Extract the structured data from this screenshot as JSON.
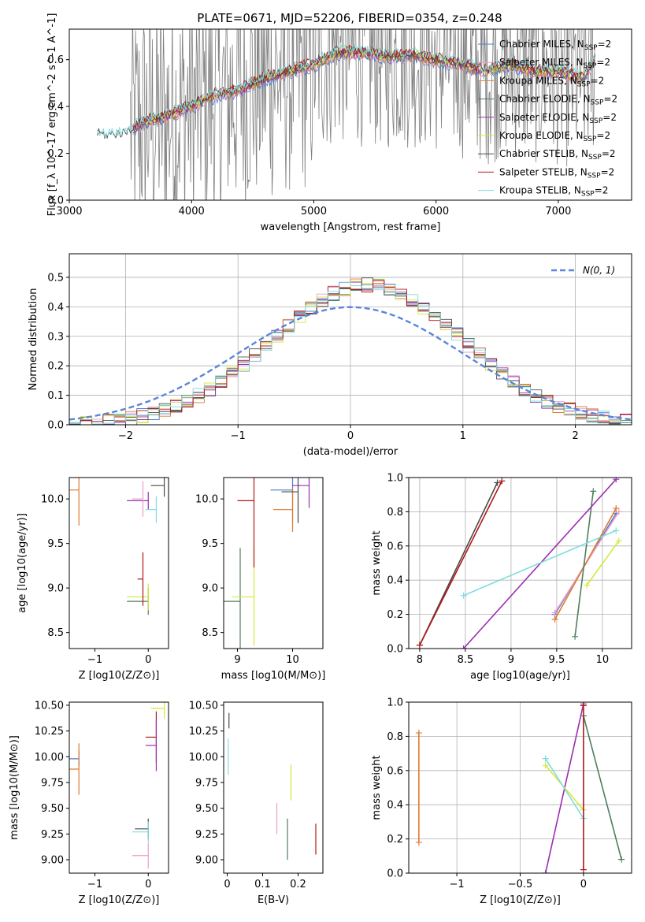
{
  "series_styles": [
    {
      "name": "Chabrier MILES, N$_{SSP}$=2",
      "color": "#4a7fd4"
    },
    {
      "name": "Salpeter MILES, N$_{SSP}$=2",
      "color": "#e8a0c8"
    },
    {
      "name": "Kroupa MILES, N$_{SSP}$=2",
      "color": "#e07a30"
    },
    {
      "name": "Chabrier ELODIE, N$_{SSP}$=2",
      "color": "#4f7f5f"
    },
    {
      "name": "Salpeter ELODIE, N$_{SSP}$=2",
      "color": "#9b2fb0"
    },
    {
      "name": "Kroupa ELODIE, N$_{SSP}$=2",
      "color": "#d4e83a"
    },
    {
      "name": "Chabrier STELIB, N$_{SSP}$=2",
      "color": "#4a4a4a"
    },
    {
      "name": "Salpeter STELIB, N$_{SSP}$=2",
      "color": "#b01818"
    },
    {
      "name": "Kroupa STELIB, N$_{SSP}$=2",
      "color": "#80dce0"
    }
  ],
  "chart_data": [
    {
      "type": "line",
      "title": "PLATE=0671, MJD=52206, FIBERID=0354, z=0.248",
      "xlabel": "wavelength [Angstrom, rest frame]",
      "ylabel": "Flux [f_λ 10^-17 erg cm^-2 s^-1 A^-1]",
      "xlim": [
        3000,
        7600
      ],
      "ylim": [
        0,
        0.73
      ],
      "xticks": [
        3000,
        4000,
        5000,
        6000,
        7000
      ],
      "yticks": [
        0.0,
        0.2,
        0.4,
        0.6
      ],
      "legend_position": "top-right",
      "legend": [
        "Chabrier MILES, N_SSP=2",
        "Salpeter MILES, N_SSP=2",
        "Kroupa MILES, N_SSP=2",
        "Chabrier ELODIE, N_SSP=2",
        "Salpeter ELODIE, N_SSP=2",
        "Kroupa ELODIE, N_SSP=2",
        "Chabrier STELIB, N_SSP=2",
        "Salpeter STELIB, N_SSP=2",
        "Kroupa STELIB, N_SSP=2"
      ],
      "data_curve_color": "#808080",
      "model_points": {
        "x": [
          3230,
          3300,
          3450,
          3600,
          3800,
          4000,
          4200,
          4400,
          4600,
          4800,
          5000,
          5200,
          5400,
          5600,
          5800,
          6000,
          6200,
          6400,
          6600,
          6800,
          7000,
          7200,
          7300
        ],
        "y": [
          0.28,
          0.27,
          0.28,
          0.33,
          0.36,
          0.4,
          0.45,
          0.47,
          0.52,
          0.55,
          0.58,
          0.63,
          0.63,
          0.61,
          0.62,
          0.6,
          0.58,
          0.55,
          0.58,
          0.55,
          0.55,
          0.52,
          0.6
        ]
      }
    },
    {
      "type": "step",
      "xlabel": "(data-model)/error",
      "ylabel": "Normed distribution",
      "xlim": [
        -2.5,
        2.5
      ],
      "ylim": [
        0,
        0.58
      ],
      "xticks": [
        -2,
        -1,
        0,
        1,
        2
      ],
      "yticks": [
        0.0,
        0.1,
        0.2,
        0.3,
        0.4,
        0.5
      ],
      "legend_position": "top-right",
      "legend": [
        "N(0,1)"
      ],
      "grid": true
    },
    {
      "type": "scatter",
      "xlabel": "Z [log10(Z/Z⊙)]",
      "ylabel": "age  [log10(age/yr)]",
      "xlim": [
        -1.48,
        0.38
      ],
      "ylim": [
        8.32,
        10.24
      ],
      "xticks": [
        -1,
        0
      ],
      "yticks": [
        8.5,
        9.0,
        9.5,
        10.0
      ],
      "points": [
        {
          "x": -1.3,
          "y": 10.1,
          "xerr": 1.6,
          "yerr": 0.8
        },
        {
          "x": 0.0,
          "y": 9.98,
          "xerr": 0.4,
          "yerr": 0.2
        },
        {
          "x": 0.3,
          "y": 10.15,
          "xerr": 0.25,
          "yerr": 0.25
        },
        {
          "x": 0.15,
          "y": 9.88,
          "xerr": 0.2,
          "yerr": 0.3
        },
        {
          "x": -0.1,
          "y": 10.0,
          "xerr": 0.2,
          "yerr": 0.4
        },
        {
          "x": 0.0,
          "y": 8.85,
          "xerr": 0.4,
          "yerr": 0.3
        },
        {
          "x": 0.0,
          "y": 8.9,
          "xerr": 0.4,
          "yerr": 0.3
        },
        {
          "x": -0.1,
          "y": 9.1,
          "xerr": 0.1,
          "yerr": 0.6
        }
      ]
    },
    {
      "type": "scatter",
      "xlabel": "mass [log10(M/M⊙)]",
      "ylabel": "",
      "xlim": [
        8.75,
        10.55
      ],
      "ylim": [
        8.32,
        10.24
      ],
      "xticks": [
        9,
        10
      ],
      "yticks": [
        8.5,
        9.0,
        9.5,
        10.0
      ],
      "points": [
        {
          "x": 9.05,
          "y": 8.85,
          "xerr": 0.4,
          "yerr": 1.2
        },
        {
          "x": 9.3,
          "y": 8.9,
          "xerr": 0.4,
          "yerr": 1.1
        },
        {
          "x": 9.3,
          "y": 9.98,
          "xerr": 0.3,
          "yerr": 1.5
        },
        {
          "x": 10.0,
          "y": 10.1,
          "xerr": 0.4,
          "yerr": 0.7
        },
        {
          "x": 10.0,
          "y": 9.88,
          "xerr": 0.35,
          "yerr": 0.5
        },
        {
          "x": 10.3,
          "y": 10.15,
          "xerr": 0.3,
          "yerr": 0.5
        },
        {
          "x": 10.1,
          "y": 10.08,
          "xerr": 0.3,
          "yerr": 0.7
        }
      ]
    },
    {
      "type": "line",
      "xlabel": "age  [log10(age/yr)]",
      "ylabel": "mass weight",
      "xlim": [
        7.88,
        10.32
      ],
      "ylim": [
        0,
        1.0
      ],
      "xticks": [
        8.0,
        8.5,
        9.0,
        9.5,
        10.0
      ],
      "yticks": [
        0.0,
        0.2,
        0.4,
        0.6,
        0.8,
        1.0
      ],
      "grid": true,
      "series": [
        {
          "name": "Chabrier MILES, N_SSP=2",
          "x": [
            9.48,
            10.15
          ],
          "y": [
            0.2,
            0.79
          ]
        },
        {
          "name": "Salpeter MILES, N_SSP=2",
          "x": [
            9.48,
            10.18
          ],
          "y": [
            0.21,
            0.8
          ]
        },
        {
          "name": "Kroupa MILES, N_SSP=2",
          "x": [
            9.48,
            10.15
          ],
          "y": [
            0.17,
            0.82
          ]
        },
        {
          "name": "Chabrier ELODIE, N_SSP=2",
          "x": [
            9.7,
            9.9
          ],
          "y": [
            0.07,
            0.92
          ]
        },
        {
          "name": "Salpeter ELODIE, N_SSP=2",
          "x": [
            8.48,
            10.15
          ],
          "y": [
            0.0,
            0.99
          ]
        },
        {
          "name": "Kroupa ELODIE, N_SSP=2",
          "x": [
            9.83,
            10.18
          ],
          "y": [
            0.37,
            0.63
          ]
        },
        {
          "name": "Chabrier STELIB, N_SSP=2",
          "x": [
            8.0,
            8.85
          ],
          "y": [
            0.02,
            0.97
          ]
        },
        {
          "name": "Salpeter STELIB, N_SSP=2",
          "x": [
            8.0,
            8.9
          ],
          "y": [
            0.02,
            0.98
          ]
        },
        {
          "name": "Kroupa STELIB, N_SSP=2",
          "x": [
            8.48,
            10.15
          ],
          "y": [
            0.31,
            0.69
          ]
        }
      ]
    },
    {
      "type": "scatter",
      "xlabel": "Z [log10(Z/Z⊙)]",
      "ylabel": "mass [log10(M/M⊙)]",
      "xlim": [
        -1.48,
        0.38
      ],
      "ylim": [
        8.87,
        10.53
      ],
      "xticks": [
        -1,
        0
      ],
      "yticks": [
        9.0,
        9.25,
        9.5,
        9.75,
        10.0,
        10.25,
        10.5
      ],
      "points": [
        {
          "x": 0.3,
          "y": 10.47,
          "xerr": 0.25,
          "yerr": 0.2
        },
        {
          "x": 0.15,
          "y": 10.19,
          "xerr": 0.2,
          "yerr": 0.5
        },
        {
          "x": -1.3,
          "y": 9.98,
          "xerr": 1.6,
          "yerr": 0.15
        },
        {
          "x": -1.3,
          "y": 9.88,
          "xerr": 1.6,
          "yerr": 0.5
        },
        {
          "x": 0.15,
          "y": 10.11,
          "xerr": 0.2,
          "yerr": 0.5
        },
        {
          "x": 0.0,
          "y": 9.3,
          "xerr": 0.25,
          "yerr": 0.2
        },
        {
          "x": 0.0,
          "y": 9.27,
          "xerr": 0.3,
          "yerr": 0.2
        },
        {
          "x": 0.0,
          "y": 9.04,
          "xerr": 0.3,
          "yerr": 0.25
        }
      ]
    },
    {
      "type": "scatter",
      "xlabel": "E(B-V)",
      "ylabel": "",
      "xlim": [
        -0.01,
        0.27
      ],
      "ylim": [
        8.87,
        10.53
      ],
      "xticks": [
        0.0,
        0.1,
        0.2
      ],
      "yticks": [
        9.0,
        9.25,
        9.5,
        9.75,
        10.0,
        10.25,
        10.5
      ],
      "points": [
        {
          "x": 0.005,
          "y": 10.35,
          "yerr": 0.15
        },
        {
          "x": 0.003,
          "y": 10.0,
          "yerr": 0.35
        },
        {
          "x": 0.14,
          "y": 9.4,
          "yerr": 0.3
        },
        {
          "x": 0.17,
          "y": 9.2,
          "yerr": 0.4
        },
        {
          "x": 0.18,
          "y": 9.75,
          "yerr": 0.35
        },
        {
          "x": 0.25,
          "y": 9.2,
          "yerr": 0.3
        }
      ]
    },
    {
      "type": "line",
      "xlabel": "Z [log10(Z/Z⊙)]",
      "ylabel": "mass weight",
      "xlim": [
        -1.38,
        0.38
      ],
      "ylim": [
        0,
        1.0
      ],
      "xticks": [
        -1.0,
        -0.5,
        0.0
      ],
      "yticks": [
        0.0,
        0.2,
        0.4,
        0.6,
        0.8,
        1.0
      ],
      "grid": true,
      "series": [
        {
          "name": "Kroupa MILES, N_SSP=2",
          "x": [
            -1.3,
            -1.3
          ],
          "y": [
            0.18,
            0.82
          ]
        },
        {
          "name": "Salpeter ELODIE, N_SSP=2",
          "x": [
            -0.3,
            0.0
          ],
          "y": [
            0.0,
            0.99
          ]
        },
        {
          "name": "Chabrier ELODIE, N_SSP=2",
          "x": [
            0.0,
            0.3
          ],
          "y": [
            0.92,
            0.08
          ]
        },
        {
          "name": "Kroupa ELODIE, N_SSP=2",
          "x": [
            -0.3,
            0.0
          ],
          "y": [
            0.63,
            0.37
          ]
        },
        {
          "name": "Kroupa STELIB, N_SSP=2",
          "x": [
            -0.3,
            0.0
          ],
          "y": [
            0.67,
            0.32
          ]
        },
        {
          "name": "Salpeter STELIB, N_SSP=2",
          "x": [
            0.0,
            0.0
          ],
          "y": [
            0.02,
            0.98
          ]
        }
      ]
    }
  ]
}
